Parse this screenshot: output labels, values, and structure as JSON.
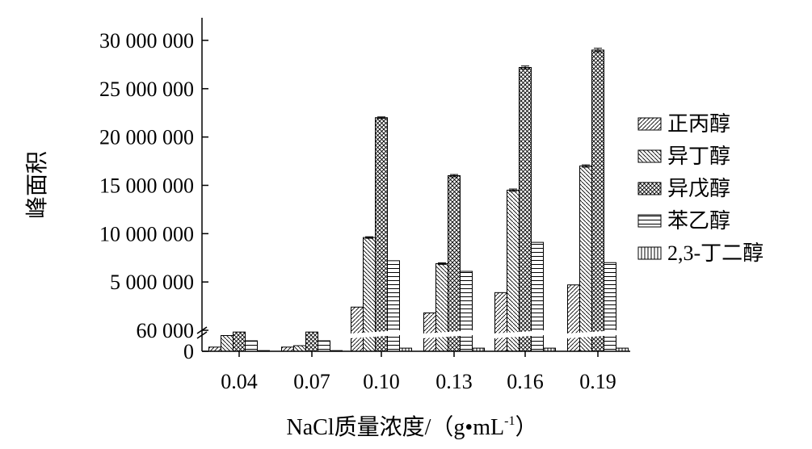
{
  "chart_data": {
    "type": "bar",
    "title": "",
    "xlabel_main": "NaCl质量浓度/",
    "xlabel_open": "（g",
    "xlabel_dot": "•",
    "xlabel_unit": "mL",
    "xlabel_sup": "-1",
    "xlabel_close": "）",
    "ylabel": "峰面积",
    "categories": [
      "0.04",
      "0.07",
      "0.10",
      "0.13",
      "0.16",
      "0.19"
    ],
    "y_ticks": [
      "0",
      "60 000",
      "5 000 000",
      "10 000 000",
      "15 000 000",
      "20 000 000",
      "25 000 000",
      "30 000 000"
    ],
    "y_break": true,
    "lower_ylim": [
      0,
      60000
    ],
    "upper_ylim": [
      0,
      30000000
    ],
    "legend_position": "right",
    "series": [
      {
        "name": "正丙醇",
        "pattern": "diag-fwd",
        "values": [
          12000,
          12000,
          2400000,
          1800000,
          3900000,
          4700000
        ],
        "errors": [
          0,
          0,
          0,
          0,
          0,
          0
        ]
      },
      {
        "name": "异丁醇",
        "pattern": "diag-back",
        "values": [
          45000,
          16000,
          9600000,
          6900000,
          14500000,
          17000000
        ],
        "errors": [
          0,
          0,
          80000,
          80000,
          120000,
          120000
        ]
      },
      {
        "name": "异戊醇",
        "pattern": "cross",
        "values": [
          55000,
          55000,
          22000000,
          16000000,
          27200000,
          29000000
        ],
        "errors": [
          0,
          0,
          80000,
          120000,
          150000,
          180000
        ]
      },
      {
        "name": "苯乙醇",
        "pattern": "horiz",
        "values": [
          30000,
          30000,
          7200000,
          6100000,
          9100000,
          7000000
        ],
        "errors": [
          0,
          0,
          0,
          0,
          0,
          0
        ]
      },
      {
        "name": "2,3-丁二醇",
        "pattern": "vert",
        "values": [
          2000,
          2000,
          9000,
          9000,
          9000,
          9000
        ],
        "errors": [
          0,
          0,
          0,
          0,
          0,
          0
        ]
      }
    ]
  }
}
